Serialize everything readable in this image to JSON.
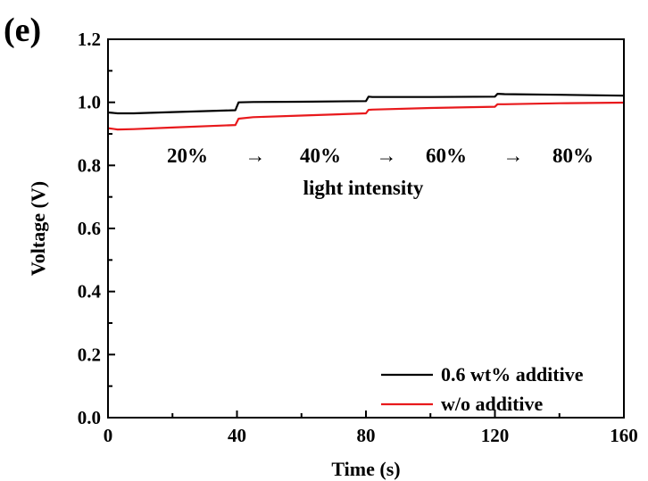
{
  "panel_label": "(e)",
  "chart_data": {
    "type": "line",
    "title": "",
    "xlabel": "Time (s)",
    "ylabel": "Voltage (V)",
    "xlim": [
      0,
      160
    ],
    "ylim": [
      0.0,
      1.2
    ],
    "x_ticks": [
      "0",
      "40",
      "80",
      "120",
      "160"
    ],
    "y_ticks": [
      "0.0",
      "0.2",
      "0.4",
      "0.6",
      "0.8",
      "1.0",
      "1.2"
    ],
    "grid": false,
    "legend_position": "bottom-right",
    "annotations": {
      "intensities": [
        "20%",
        "40%",
        "60%",
        "80%"
      ],
      "arrows": [
        "→",
        "→",
        "→"
      ],
      "caption": "light intensity"
    },
    "series": [
      {
        "name": "0.6 wt% additive",
        "color": "#000000",
        "x": [
          0,
          3,
          8,
          20,
          39.5,
          40.5,
          45,
          60,
          80,
          80.8,
          82,
          100,
          120,
          120.8,
          123,
          140,
          160
        ],
        "y": [
          0.968,
          0.965,
          0.965,
          0.969,
          0.975,
          1.0,
          1.001,
          1.002,
          1.004,
          1.018,
          1.017,
          1.017,
          1.018,
          1.027,
          1.026,
          1.024,
          1.021
        ]
      },
      {
        "name": "w/o additive",
        "color": "#e8191c",
        "x": [
          0,
          3,
          8,
          20,
          39.5,
          40.5,
          45,
          60,
          80,
          80.8,
          82,
          100,
          120,
          120.8,
          123,
          140,
          160
        ],
        "y": [
          0.918,
          0.914,
          0.915,
          0.92,
          0.928,
          0.948,
          0.953,
          0.958,
          0.965,
          0.976,
          0.977,
          0.982,
          0.986,
          0.994,
          0.994,
          0.997,
          0.999
        ]
      }
    ]
  }
}
